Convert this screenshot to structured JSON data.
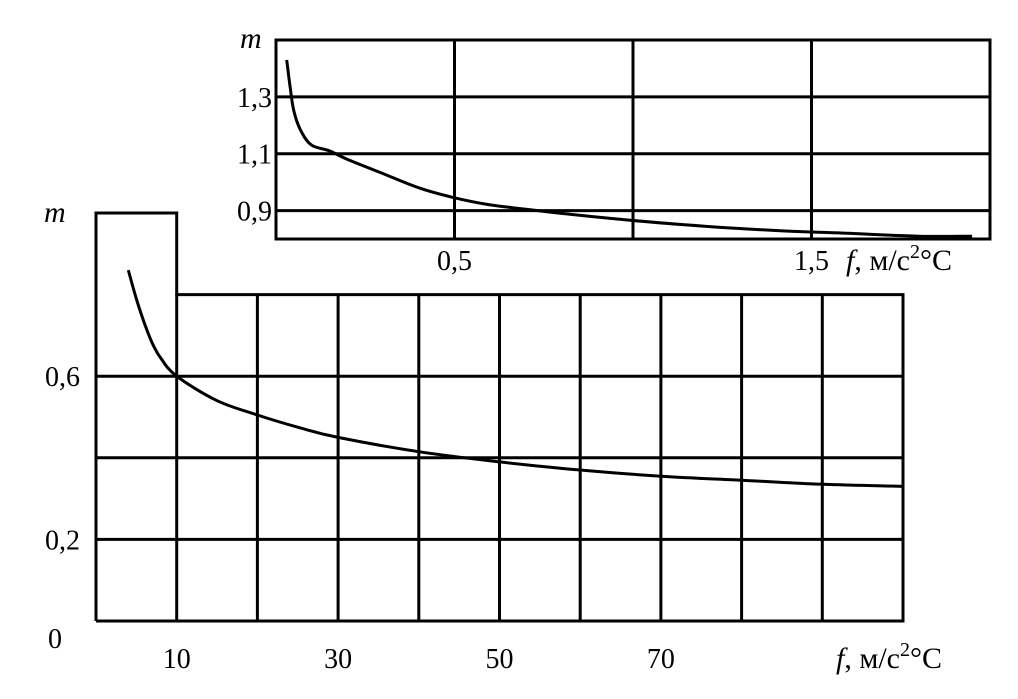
{
  "chart_data": [
    {
      "id": "inset",
      "type": "line",
      "ylabel": "m",
      "xlabel": {
        "var": "f",
        "unit": ", м/с",
        "sup": "2",
        "tail": "°С"
      },
      "xlim": [
        0,
        2
      ],
      "ylim": [
        0.8,
        1.5
      ],
      "x_ticks": [
        {
          "value": 0.5,
          "label": "0,5"
        },
        {
          "value": 1.5,
          "label": "1,5"
        }
      ],
      "y_ticks": [
        {
          "value": 0.9,
          "label": "0,9"
        },
        {
          "value": 1.1,
          "label": "1,1"
        },
        {
          "value": 1.3,
          "label": "1,3"
        }
      ],
      "grid_x": [
        0.5,
        1.0,
        1.5
      ],
      "grid_y": [
        0.9,
        1.1,
        1.3
      ],
      "x": [
        0.03,
        0.04,
        0.05,
        0.07,
        0.1,
        0.15,
        0.2,
        0.3,
        0.4,
        0.5,
        0.6,
        0.7,
        0.8,
        1.0,
        1.2,
        1.4,
        1.6,
        1.8,
        1.95
      ],
      "y": [
        1.43,
        1.33,
        1.25,
        1.18,
        1.13,
        1.11,
        1.08,
        1.03,
        0.98,
        0.945,
        0.92,
        0.905,
        0.89,
        0.865,
        0.845,
        0.83,
        0.82,
        0.81,
        0.81
      ]
    },
    {
      "id": "main",
      "type": "line",
      "ylabel": "m",
      "origin_label": "0",
      "xlabel": {
        "var": "f",
        "unit": ", м/с",
        "sup": "2",
        "tail": "°С"
      },
      "xlim": [
        0,
        100
      ],
      "ylim": [
        0,
        1.0
      ],
      "x_ticks": [
        {
          "value": 10,
          "label": "10"
        },
        {
          "value": 30,
          "label": "30"
        },
        {
          "value": 50,
          "label": "50"
        },
        {
          "value": 70,
          "label": "70"
        }
      ],
      "y_ticks": [
        {
          "value": 0.2,
          "label": "0,2"
        },
        {
          "value": 0.6,
          "label": "0,6"
        }
      ],
      "grid_x": [
        10,
        20,
        30,
        40,
        50,
        60,
        70,
        80,
        90
      ],
      "grid_y": [
        0.2,
        0.4,
        0.6,
        0.8
      ],
      "x": [
        4,
        5,
        6,
        7,
        8,
        10,
        15,
        20,
        25,
        30,
        40,
        50,
        60,
        70,
        80,
        90,
        100
      ],
      "y": [
        0.86,
        0.79,
        0.73,
        0.68,
        0.645,
        0.6,
        0.54,
        0.505,
        0.475,
        0.45,
        0.415,
        0.39,
        0.37,
        0.355,
        0.345,
        0.335,
        0.33
      ]
    }
  ]
}
